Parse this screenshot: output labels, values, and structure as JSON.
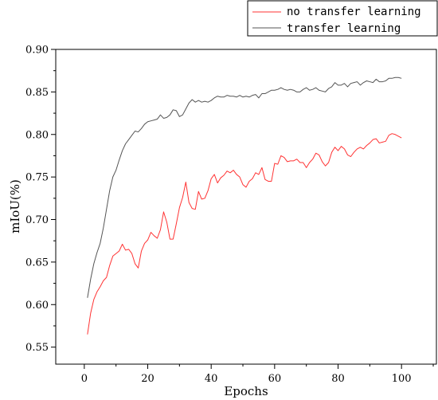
{
  "chart_data": {
    "type": "line",
    "xlabel": "Epochs",
    "ylabel": "mIoU(%)",
    "xlim": [
      -9,
      111
    ],
    "ylim": [
      0.53,
      0.9
    ],
    "xticks": [
      0,
      20,
      40,
      60,
      80,
      100
    ],
    "yticks": [
      "0.55",
      "0.60",
      "0.65",
      "0.70",
      "0.75",
      "0.80",
      "0.85",
      "0.90"
    ],
    "grid": false,
    "legend_position": "top-right",
    "series": [
      {
        "name": "no transfer learning",
        "color": "#ff3333",
        "x": [
          1,
          2,
          3,
          4,
          5,
          6,
          7,
          8,
          9,
          10,
          11,
          12,
          13,
          14,
          15,
          16,
          17,
          18,
          19,
          20,
          21,
          22,
          23,
          24,
          25,
          26,
          27,
          28,
          29,
          30,
          31,
          32,
          33,
          34,
          35,
          36,
          37,
          38,
          39,
          40,
          41,
          42,
          43,
          44,
          45,
          46,
          47,
          48,
          49,
          50,
          51,
          52,
          53,
          54,
          55,
          56,
          57,
          58,
          59,
          60,
          61,
          62,
          63,
          64,
          65,
          66,
          67,
          68,
          69,
          70,
          71,
          72,
          73,
          74,
          75,
          76,
          77,
          78,
          79,
          80,
          81,
          82,
          83,
          84,
          85,
          86,
          87,
          88,
          89,
          90,
          91,
          92,
          93,
          94,
          95,
          96,
          97,
          98,
          99,
          100
        ],
        "y": [
          0.565,
          0.59,
          0.606,
          0.615,
          0.621,
          0.628,
          0.632,
          0.646,
          0.657,
          0.66,
          0.663,
          0.671,
          0.664,
          0.665,
          0.66,
          0.648,
          0.643,
          0.663,
          0.672,
          0.676,
          0.685,
          0.681,
          0.678,
          0.688,
          0.709,
          0.697,
          0.677,
          0.677,
          0.695,
          0.714,
          0.726,
          0.744,
          0.72,
          0.713,
          0.712,
          0.733,
          0.724,
          0.725,
          0.734,
          0.748,
          0.753,
          0.743,
          0.749,
          0.752,
          0.757,
          0.755,
          0.758,
          0.753,
          0.75,
          0.741,
          0.738,
          0.745,
          0.748,
          0.755,
          0.753,
          0.761,
          0.747,
          0.745,
          0.745,
          0.766,
          0.765,
          0.775,
          0.773,
          0.768,
          0.769,
          0.769,
          0.771,
          0.767,
          0.767,
          0.761,
          0.767,
          0.771,
          0.778,
          0.776,
          0.768,
          0.763,
          0.767,
          0.779,
          0.785,
          0.781,
          0.786,
          0.783,
          0.776,
          0.774,
          0.779,
          0.783,
          0.785,
          0.783,
          0.787,
          0.79,
          0.794,
          0.795,
          0.79,
          0.791,
          0.792,
          0.799,
          0.801,
          0.8,
          0.798,
          0.796
        ]
      },
      {
        "name": "transfer learning",
        "color": "#555555",
        "x": [
          1,
          2,
          3,
          4,
          5,
          6,
          7,
          8,
          9,
          10,
          11,
          12,
          13,
          14,
          15,
          16,
          17,
          18,
          19,
          20,
          21,
          22,
          23,
          24,
          25,
          26,
          27,
          28,
          29,
          30,
          31,
          32,
          33,
          34,
          35,
          36,
          37,
          38,
          39,
          40,
          41,
          42,
          43,
          44,
          45,
          46,
          47,
          48,
          49,
          50,
          51,
          52,
          53,
          54,
          55,
          56,
          57,
          58,
          59,
          60,
          61,
          62,
          63,
          64,
          65,
          66,
          67,
          68,
          69,
          70,
          71,
          72,
          73,
          74,
          75,
          76,
          77,
          78,
          79,
          80,
          81,
          82,
          83,
          84,
          85,
          86,
          87,
          88,
          89,
          90,
          91,
          92,
          93,
          94,
          95,
          96,
          97,
          98,
          99,
          100
        ],
        "y": [
          0.608,
          0.63,
          0.648,
          0.661,
          0.672,
          0.69,
          0.712,
          0.734,
          0.75,
          0.758,
          0.77,
          0.781,
          0.789,
          0.794,
          0.799,
          0.804,
          0.803,
          0.807,
          0.812,
          0.815,
          0.816,
          0.817,
          0.818,
          0.823,
          0.819,
          0.82,
          0.823,
          0.829,
          0.828,
          0.821,
          0.823,
          0.83,
          0.837,
          0.841,
          0.838,
          0.84,
          0.838,
          0.839,
          0.838,
          0.84,
          0.843,
          0.845,
          0.844,
          0.844,
          0.846,
          0.845,
          0.845,
          0.844,
          0.846,
          0.844,
          0.845,
          0.844,
          0.846,
          0.847,
          0.843,
          0.848,
          0.848,
          0.85,
          0.852,
          0.852,
          0.853,
          0.855,
          0.853,
          0.852,
          0.853,
          0.852,
          0.85,
          0.85,
          0.853,
          0.855,
          0.852,
          0.853,
          0.855,
          0.852,
          0.851,
          0.85,
          0.854,
          0.856,
          0.861,
          0.858,
          0.858,
          0.86,
          0.856,
          0.86,
          0.861,
          0.862,
          0.858,
          0.861,
          0.863,
          0.862,
          0.861,
          0.865,
          0.862,
          0.862,
          0.863,
          0.866,
          0.866,
          0.867,
          0.867,
          0.866
        ]
      }
    ]
  }
}
